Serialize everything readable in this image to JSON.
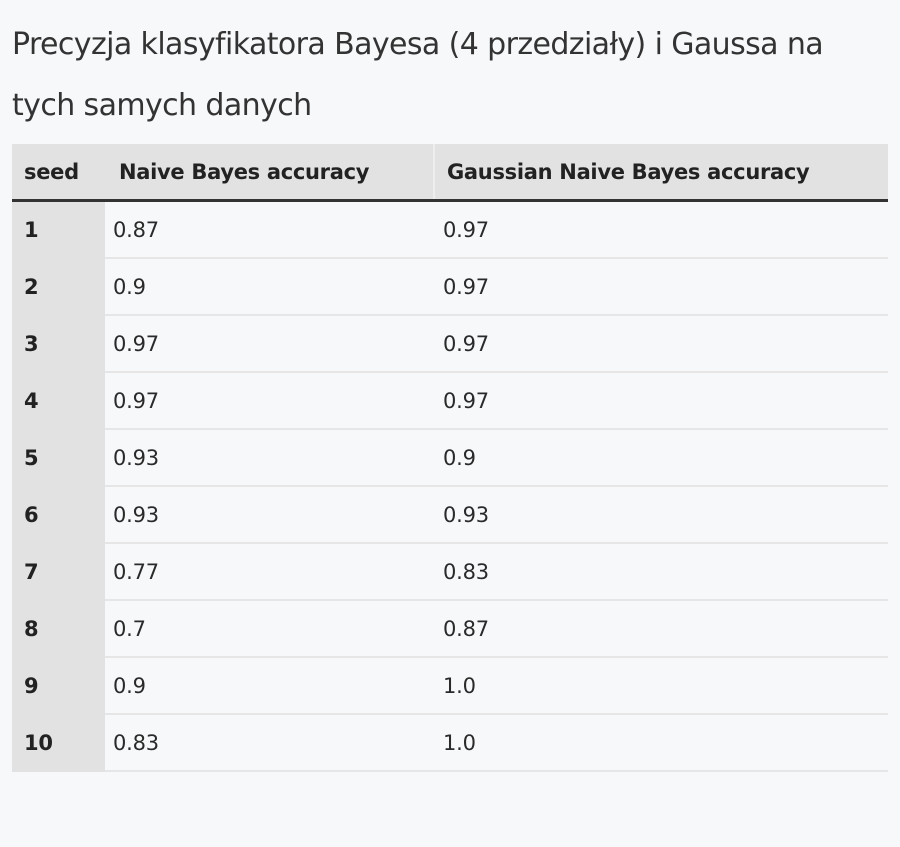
{
  "heading": "Precyzja klasyfikatora Bayesa (4 przedziały) i Gaussa na tych samych danych",
  "table": {
    "headers": [
      "seed",
      "Naive Bayes accuracy",
      "Gaussian Naive Bayes accuracy"
    ],
    "rows": [
      [
        "1",
        "0.87",
        "0.97"
      ],
      [
        "2",
        "0.9",
        "0.97"
      ],
      [
        "3",
        "0.97",
        "0.97"
      ],
      [
        "4",
        "0.97",
        "0.97"
      ],
      [
        "5",
        "0.93",
        "0.9"
      ],
      [
        "6",
        "0.93",
        "0.93"
      ],
      [
        "7",
        "0.77",
        "0.83"
      ],
      [
        "8",
        "0.7",
        "0.87"
      ],
      [
        "9",
        "0.9",
        "1.0"
      ],
      [
        "10",
        "0.83",
        "1.0"
      ]
    ]
  }
}
